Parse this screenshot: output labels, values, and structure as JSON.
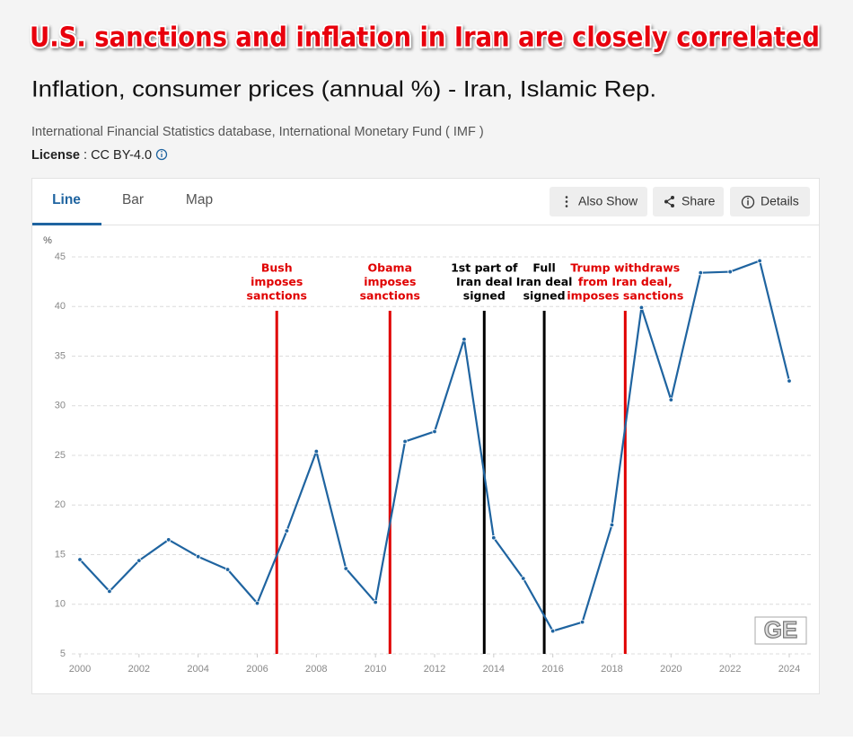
{
  "headline": "U.S. sanctions and inflation in Iran are closely correlated",
  "title": "Inflation, consumer prices (annual %) - Iran, Islamic Rep.",
  "source": "International Financial Statistics database, International Monetary Fund ( IMF )",
  "license_label": "License",
  "license_value": ": CC BY-4.0",
  "tabs": [
    "Line",
    "Bar",
    "Map"
  ],
  "buttons": [
    "Also Show",
    "Share",
    "Details"
  ],
  "watermark": "GE",
  "chart_data": {
    "type": "line",
    "y_label": "%",
    "x": [
      2000,
      2001,
      2002,
      2003,
      2004,
      2005,
      2006,
      2007,
      2008,
      2009,
      2010,
      2011,
      2012,
      2013,
      2014,
      2015,
      2016,
      2017,
      2018,
      2019,
      2020,
      2021,
      2022,
      2023,
      2024
    ],
    "values": [
      14.5,
      11.3,
      14.4,
      16.5,
      14.8,
      13.5,
      10.1,
      17.4,
      25.4,
      13.6,
      10.2,
      26.4,
      27.4,
      36.7,
      16.7,
      12.6,
      7.3,
      8.2,
      18.0,
      39.9,
      30.6,
      43.4,
      43.5,
      44.6,
      32.5
    ],
    "color": "#1f64a0",
    "xlim": [
      2000,
      2024
    ],
    "xticks": [
      2000,
      2002,
      2004,
      2006,
      2008,
      2010,
      2012,
      2014,
      2016,
      2018,
      2020,
      2022,
      2024
    ],
    "ylim": [
      5,
      45
    ],
    "yticks": [
      5,
      10,
      15,
      20,
      25,
      30,
      35,
      40,
      45
    ],
    "grid": true,
    "annotations": [
      {
        "lines": [
          "Bush",
          "imposes",
          "sanctions"
        ],
        "x": 2006.66,
        "color": "#e00000"
      },
      {
        "lines": [
          "Obama",
          "imposes",
          "sanctions"
        ],
        "x": 2010.49,
        "color": "#e00000"
      },
      {
        "lines": [
          "1st part of",
          "Iran deal",
          "signed"
        ],
        "x": 2013.68,
        "color": "#000000"
      },
      {
        "lines": [
          "Full",
          "Iran deal",
          "signed"
        ],
        "x": 2015.71,
        "color": "#000000"
      },
      {
        "lines": [
          "Trump withdraws",
          "from Iran deal,",
          "imposes sanctions"
        ],
        "x": 2018.45,
        "color": "#e00000"
      }
    ]
  }
}
